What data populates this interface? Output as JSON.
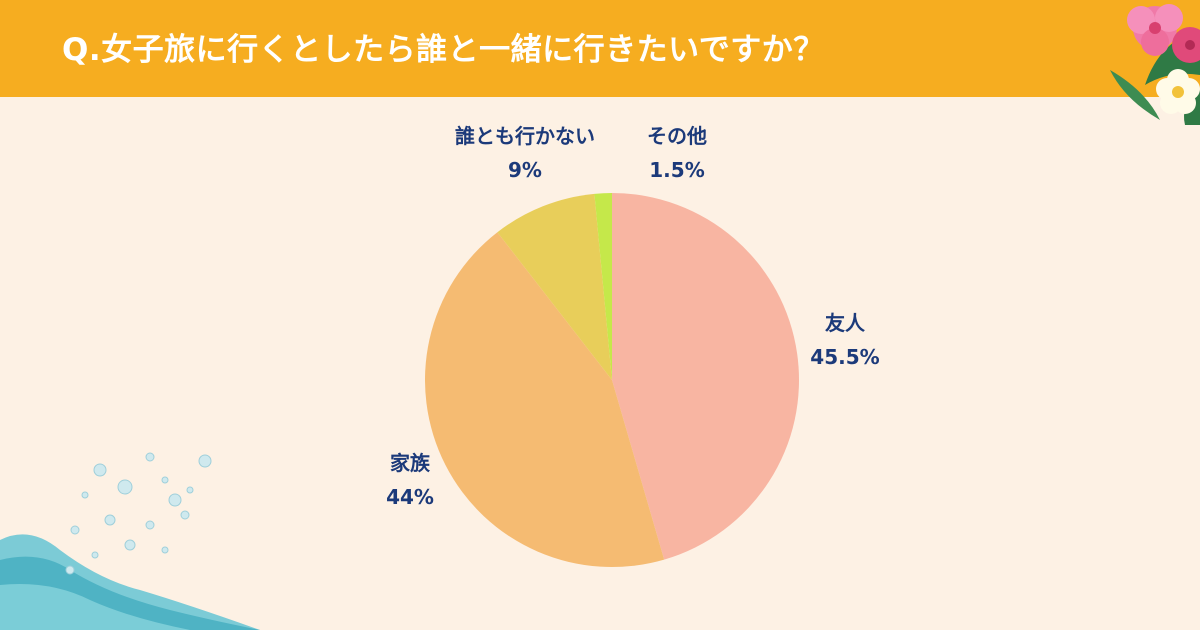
{
  "header": {
    "title": "Q.女子旅に行くとしたら誰と一緒に行きたいですか？",
    "bar_color": "#f6ad20"
  },
  "decor": {
    "flower_icon": "hibiscus-icon",
    "wave_icon": "water-wave-icon",
    "bubbles_icon": "bubbles-icon"
  },
  "chart_data": {
    "type": "pie",
    "title": "Q.女子旅に行くとしたら誰と一緒に行きたいですか？",
    "slices": [
      {
        "name": "友人",
        "value": 45.5,
        "value_label": "45.5%",
        "color": "#f8b5a2"
      },
      {
        "name": "家族",
        "value": 44,
        "value_label": "44%",
        "color": "#f5bb72"
      },
      {
        "name": "誰とも行かない",
        "value": 9,
        "value_label": "9%",
        "color": "#e8ce5a"
      },
      {
        "name": "その他",
        "value": 1.5,
        "value_label": "1.5%",
        "color": "#c5e84a"
      }
    ],
    "label_color": "#1c3a7a",
    "start": "top",
    "direction": "clockwise"
  }
}
